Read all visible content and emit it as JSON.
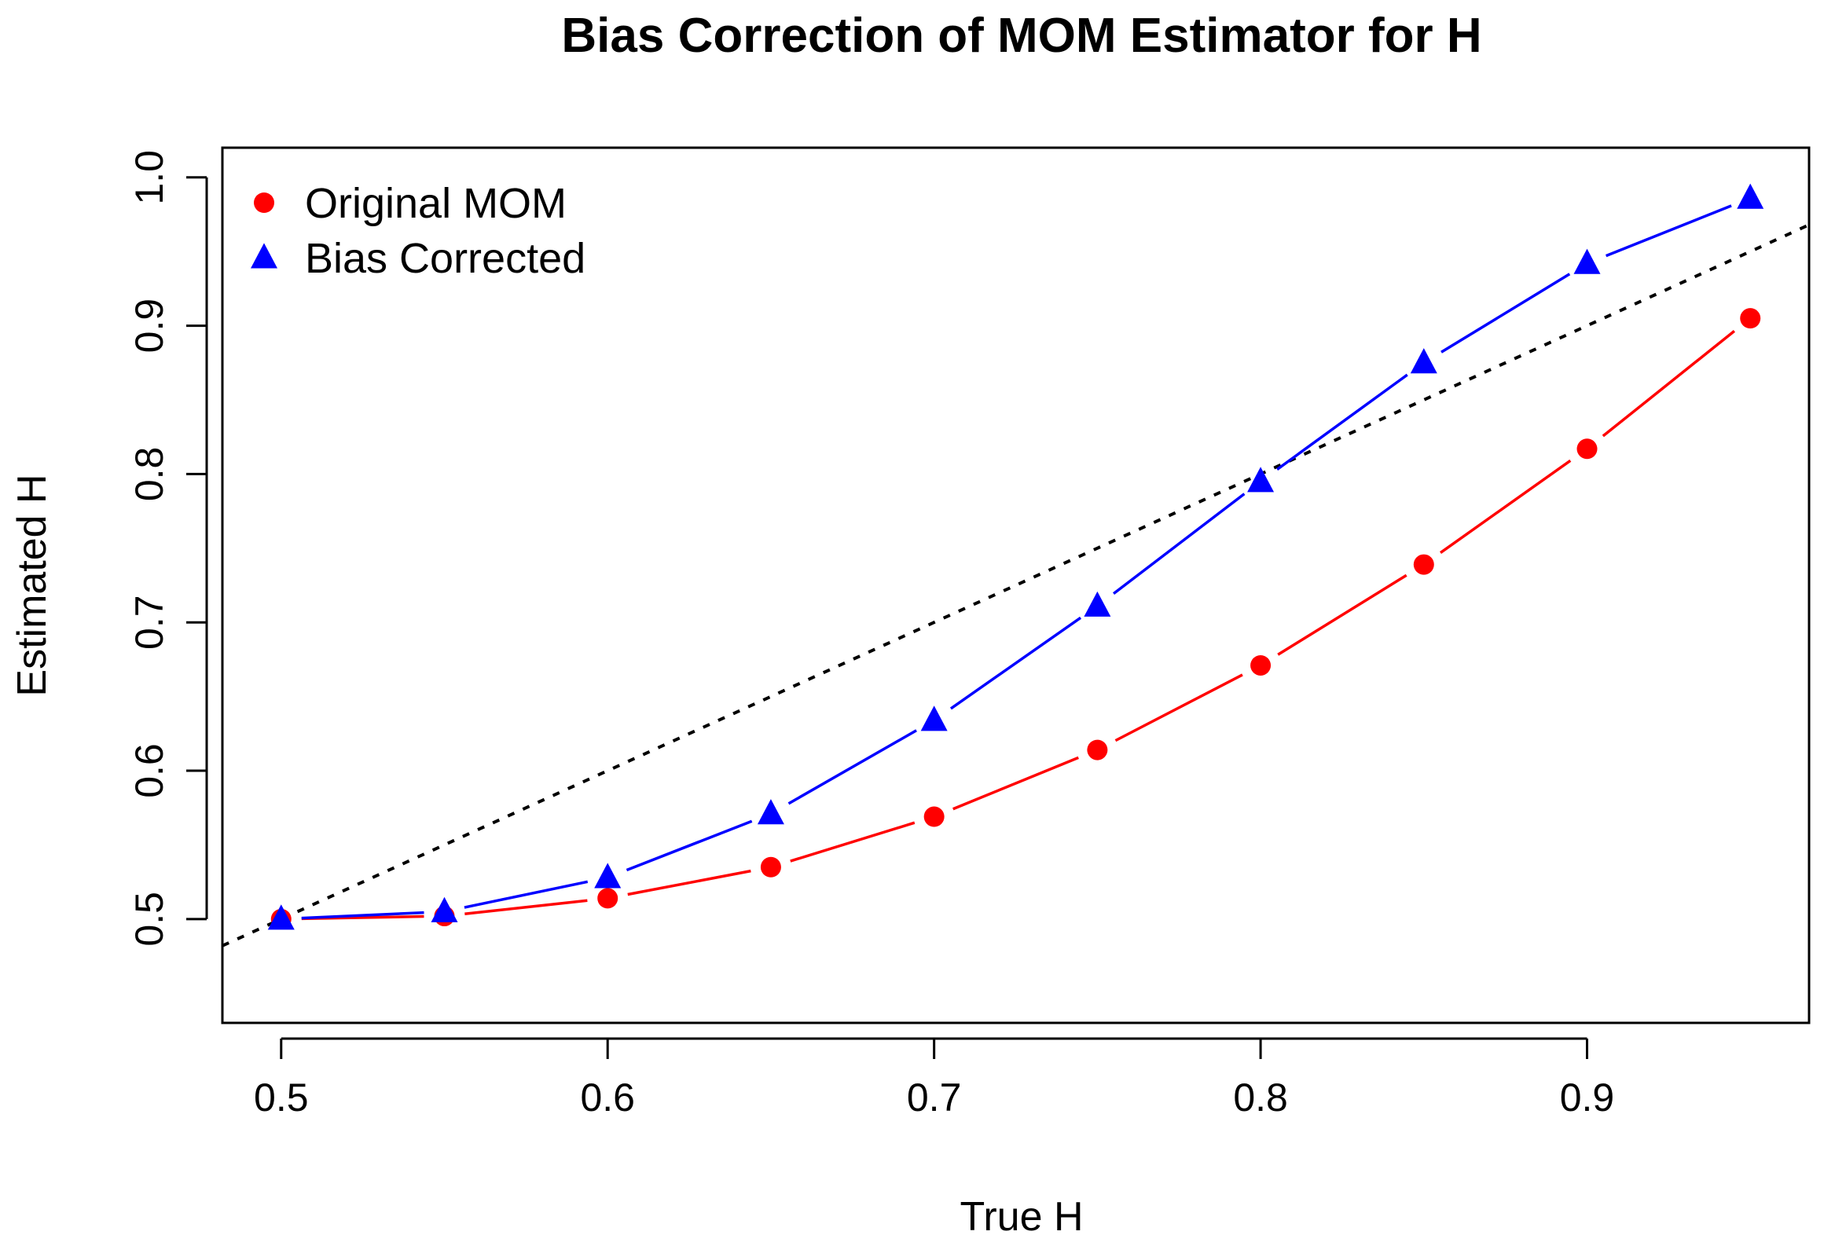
{
  "chart_data": {
    "type": "line",
    "title": "Bias Correction of MOM Estimator for H",
    "xlabel": "True H",
    "ylabel": "Estimated H",
    "xlim": [
      0.482,
      0.968
    ],
    "ylim": [
      0.43,
      1.02
    ],
    "x_ticks": [
      0.5,
      0.6,
      0.7,
      0.8,
      0.9
    ],
    "x_tick_labels": [
      "0.5",
      "0.6",
      "0.7",
      "0.8",
      "0.9"
    ],
    "y_ticks": [
      0.5,
      0.6,
      0.7,
      0.8,
      0.9,
      1.0
    ],
    "y_tick_labels": [
      "0.5",
      "0.6",
      "0.7",
      "0.8",
      "0.9",
      "1.0"
    ],
    "x": [
      0.5,
      0.55,
      0.6,
      0.65,
      0.7,
      0.75,
      0.8,
      0.85,
      0.9,
      0.95
    ],
    "series": [
      {
        "name": "Original MOM",
        "marker": "circle",
        "color": "#ff0000",
        "values": [
          0.5,
          0.502,
          0.514,
          0.535,
          0.569,
          0.614,
          0.671,
          0.739,
          0.817,
          0.905
        ]
      },
      {
        "name": "Bias Corrected",
        "marker": "triangle",
        "color": "#0000ff",
        "values": [
          0.5,
          0.505,
          0.528,
          0.571,
          0.634,
          0.711,
          0.795,
          0.875,
          0.942,
          0.986
        ]
      }
    ],
    "reference_line": {
      "name": "y = x",
      "style": "dotted",
      "color": "#000000",
      "slope": 1,
      "intercept": 0
    },
    "legend_position": "top-left",
    "grid": false
  }
}
